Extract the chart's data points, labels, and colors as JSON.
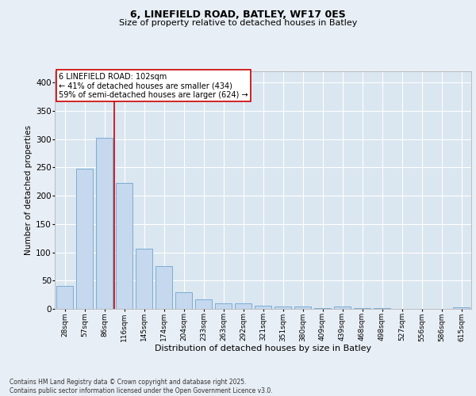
{
  "title1": "6, LINEFIELD ROAD, BATLEY, WF17 0ES",
  "title2": "Size of property relative to detached houses in Batley",
  "xlabel": "Distribution of detached houses by size in Batley",
  "ylabel": "Number of detached properties",
  "categories": [
    "28sqm",
    "57sqm",
    "86sqm",
    "116sqm",
    "145sqm",
    "174sqm",
    "204sqm",
    "233sqm",
    "263sqm",
    "292sqm",
    "321sqm",
    "351sqm",
    "380sqm",
    "409sqm",
    "439sqm",
    "468sqm",
    "498sqm",
    "527sqm",
    "556sqm",
    "586sqm",
    "615sqm"
  ],
  "values": [
    40,
    248,
    302,
    222,
    107,
    76,
    30,
    17,
    10,
    10,
    5,
    4,
    4,
    2,
    4,
    2,
    1,
    0,
    0,
    0,
    3
  ],
  "bar_color": "#c5d8ee",
  "bar_edge_color": "#7aadd4",
  "fig_bg_color": "#e8eef5",
  "plot_bg_color": "#dae6f0",
  "grid_color": "#ffffff",
  "vline_color": "#cc0000",
  "vline_x_idx": 2.5,
  "annotation_text": "6 LINEFIELD ROAD: 102sqm\n← 41% of detached houses are smaller (434)\n59% of semi-detached houses are larger (624) →",
  "annotation_box_facecolor": "#ffffff",
  "annotation_box_edgecolor": "#cc0000",
  "footer": "Contains HM Land Registry data © Crown copyright and database right 2025.\nContains public sector information licensed under the Open Government Licence v3.0.",
  "ylim": [
    0,
    420
  ],
  "yticks": [
    0,
    50,
    100,
    150,
    200,
    250,
    300,
    350,
    400
  ],
  "title1_fontsize": 9,
  "title2_fontsize": 8,
  "xlabel_fontsize": 8,
  "ylabel_fontsize": 7.5,
  "xtick_fontsize": 6.5,
  "ytick_fontsize": 7.5,
  "annotation_fontsize": 7,
  "footer_fontsize": 5.5
}
